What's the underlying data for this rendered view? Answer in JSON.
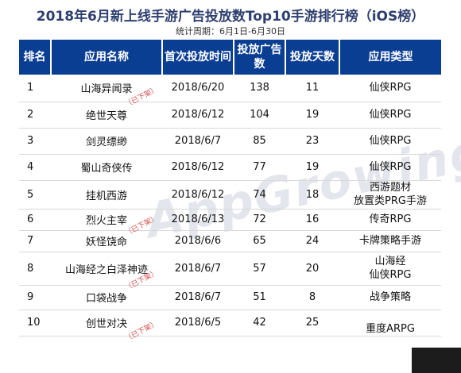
{
  "title": "2018年6月新上线手游广告投放数Top10手游排行榜（iOS榜）",
  "subtitle": "统计周期：6月1日-6月30日",
  "watermark": "AppGrowing",
  "removed_label": "（已下架）",
  "columns": [
    "排名",
    "应用名称",
    "首次投放时间",
    "投放广告数",
    "投放天数",
    "应用类型"
  ],
  "rows": [
    {
      "rank": "1",
      "name": "山海异闻录",
      "date": "2018/6/20",
      "ads": "138",
      "days": "11",
      "type": [
        "仙侠RPG"
      ],
      "removed": true
    },
    {
      "rank": "2",
      "name": "绝世天尊",
      "date": "2018/6/12",
      "ads": "104",
      "days": "19",
      "type": [
        "仙侠RPG"
      ],
      "removed": false
    },
    {
      "rank": "3",
      "name": "剑灵缥缈",
      "date": "2018/6/7",
      "ads": "85",
      "days": "23",
      "type": [
        "仙侠RPG"
      ],
      "removed": false
    },
    {
      "rank": "4",
      "name": "蜀山奇侠传",
      "date": "2018/6/12",
      "ads": "77",
      "days": "19",
      "type": [
        "仙侠RPG"
      ],
      "removed": false
    },
    {
      "rank": "5",
      "name": "挂机西游",
      "date": "2018/6/12",
      "ads": "74",
      "days": "18",
      "type": [
        "西游题材",
        "放置类PRG手游"
      ],
      "removed": false
    },
    {
      "rank": "6",
      "name": "烈火主宰",
      "date": "2018/6/13",
      "ads": "72",
      "days": "16",
      "type": [
        "传奇RPG"
      ],
      "removed": true
    },
    {
      "rank": "7",
      "name": "妖怪饶命",
      "date": "2018/6/6",
      "ads": "65",
      "days": "24",
      "type": [
        "卡牌策略手游"
      ],
      "removed": false
    },
    {
      "rank": "8",
      "name": "山海经之白泽神迹",
      "date": "2018/6/7",
      "ads": "57",
      "days": "20",
      "type": [
        "山海经",
        "仙侠RPG"
      ],
      "removed": true
    },
    {
      "rank": "9",
      "name": "口袋战争",
      "date": "2018/6/7",
      "ads": "51",
      "days": "8",
      "type": [
        "战争策略"
      ],
      "removed": false
    },
    {
      "rank": "10",
      "name": "创世对决",
      "date": "2018/6/5",
      "ads": "42",
      "days": "25",
      "type": [
        "",
        "重度ARPG"
      ],
      "removed": true
    }
  ]
}
